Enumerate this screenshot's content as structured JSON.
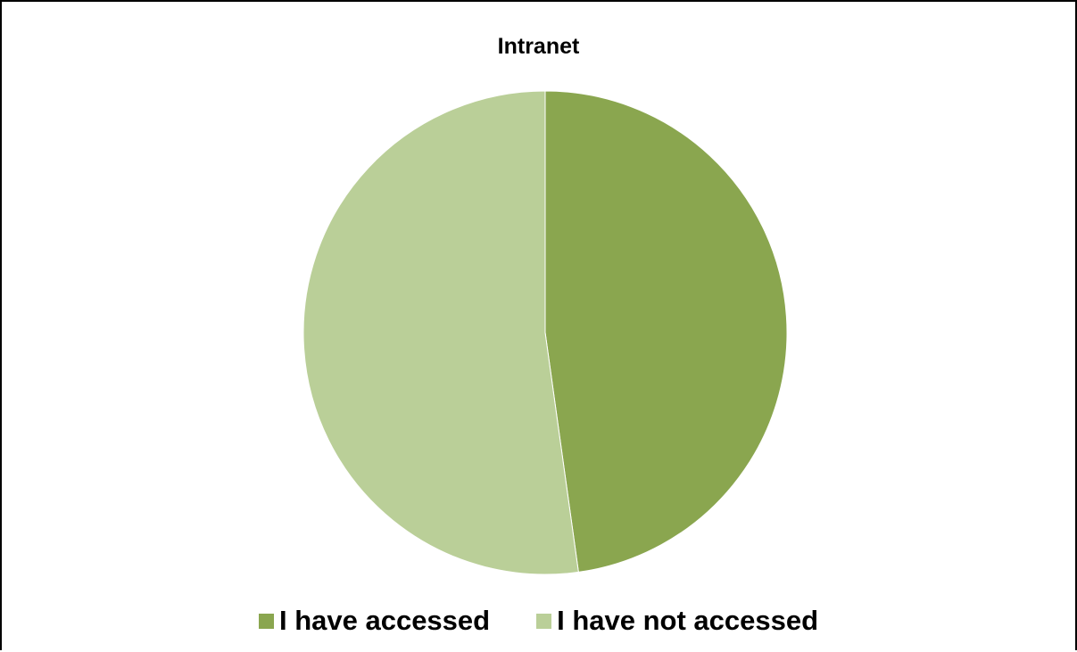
{
  "chart_data": {
    "type": "pie",
    "title": "Intranet",
    "series": [
      {
        "name": "I have accessed",
        "value": 47.8,
        "color": "#8aa64f"
      },
      {
        "name": "I have not accessed",
        "value": 52.2,
        "color": "#bacf98"
      }
    ],
    "start_angle": "12 o'clock",
    "direction": "clockwise",
    "legend_position": "bottom"
  }
}
